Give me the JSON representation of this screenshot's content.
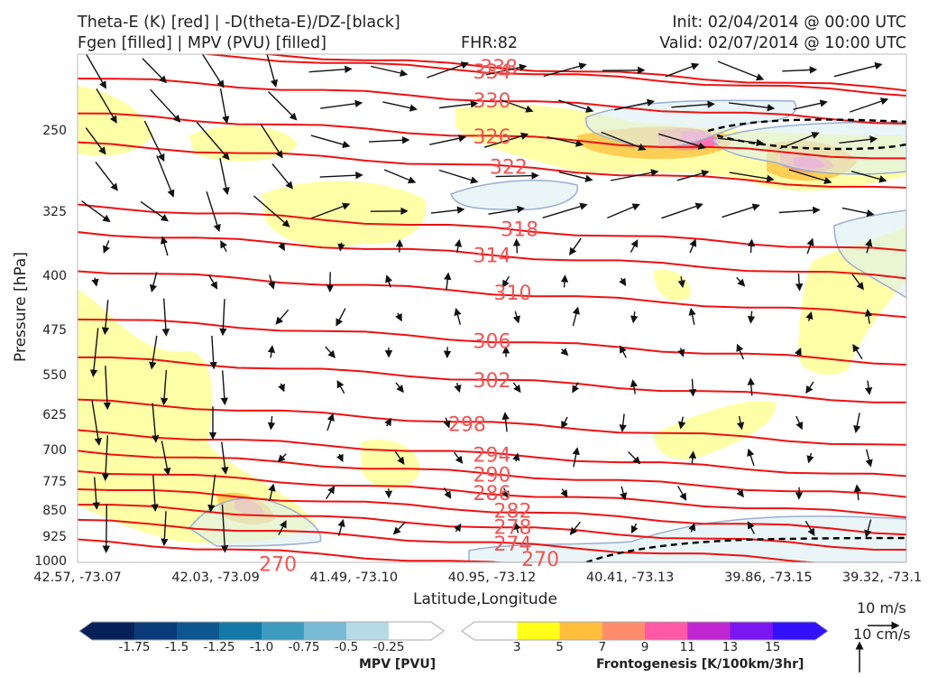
{
  "header": {
    "title_left_1": "Theta-E (K) [red] | -D(theta-E)/DZ-[black]",
    "title_left_2": "Fgen [filled] | MPV (PVU) [filled]",
    "fhr": "FHR:82",
    "init": "Init: 02/04/2014 @ 00:00 UTC",
    "valid": "Valid: 02/07/2014 @ 10:00 UTC"
  },
  "colors": {
    "theta_e": "#ee1111",
    "contour_label": "#f05555",
    "vector": "#111111",
    "mpv_neg_line": "#9aafd0",
    "dashed": "#000000"
  },
  "chart_data": {
    "type": "cross-section",
    "xlabel": "Latitude,Longitude",
    "ylabel": "Pressure [hPa]",
    "x_ticks": [
      "42.57, -73.07",
      "42.03, -73.09",
      "41.49, -73.10",
      "40.95, -73.12",
      "40.41, -73.13",
      "39.86, -73.15",
      "39.32, -73.1"
    ],
    "y_ticks": [
      250,
      325,
      400,
      475,
      550,
      625,
      700,
      775,
      850,
      925,
      1000
    ],
    "ylim": [
      1000,
      195
    ],
    "y_scale": "log-pressure",
    "theta_e_labels": [
      {
        "value": "338",
        "pressure": 203,
        "x_index": 3.05
      },
      {
        "value": "334",
        "pressure": 206,
        "x_index": 3.0
      },
      {
        "value": "330",
        "pressure": 226,
        "x_index": 3.0
      },
      {
        "value": "326",
        "pressure": 254,
        "x_index": 3.0
      },
      {
        "value": "322",
        "pressure": 280,
        "x_index": 3.12
      },
      {
        "value": "318",
        "pressure": 342,
        "x_index": 3.2
      },
      {
        "value": "314",
        "pressure": 372,
        "x_index": 3.0
      },
      {
        "value": "310",
        "pressure": 420,
        "x_index": 3.15
      },
      {
        "value": "306",
        "pressure": 490,
        "x_index": 3.0
      },
      {
        "value": "302",
        "pressure": 556,
        "x_index": 3.0
      },
      {
        "value": "298",
        "pressure": 640,
        "x_index": 2.82
      },
      {
        "value": "294",
        "pressure": 707,
        "x_index": 3.0
      },
      {
        "value": "290",
        "pressure": 753,
        "x_index": 3.0
      },
      {
        "value": "286",
        "pressure": 800,
        "x_index": 3.0
      },
      {
        "value": "282",
        "pressure": 846,
        "x_index": 3.15
      },
      {
        "value": "278",
        "pressure": 892,
        "x_index": 3.15
      },
      {
        "value": "274",
        "pressure": 941,
        "x_index": 3.15
      },
      {
        "value": "270",
        "pressure": 1005,
        "x_index": 1.45
      },
      {
        "value": "270",
        "pressure": 1083,
        "x_index": 3.35
      }
    ],
    "mpv_colorbar": {
      "title": "MPV [PVU]",
      "ticks": [
        "-1.75",
        "-1.5",
        "-1.25",
        "-1.0",
        "-0.75",
        "-0.5",
        "-0.25"
      ],
      "colors": [
        "#08205a",
        "#0b3a78",
        "#0d5690",
        "#1478a6",
        "#3c9bbf",
        "#79bad4",
        "#b7dbe6",
        "#ffffff"
      ]
    },
    "fgen_colorbar": {
      "title": "Frontogenesis [K/100km/3hr]",
      "ticks": [
        "3",
        "5",
        "7",
        "9",
        "11",
        "13",
        "15"
      ],
      "colors": [
        "#ffffff",
        "#ffff1a",
        "#ffbf3d",
        "#ff8c6c",
        "#ff59a6",
        "#bf26d1",
        "#7a17f0",
        "#3311ff"
      ]
    },
    "reference_vectors": {
      "horizontal": "10 m/s",
      "vertical": "10 cm/s"
    }
  }
}
